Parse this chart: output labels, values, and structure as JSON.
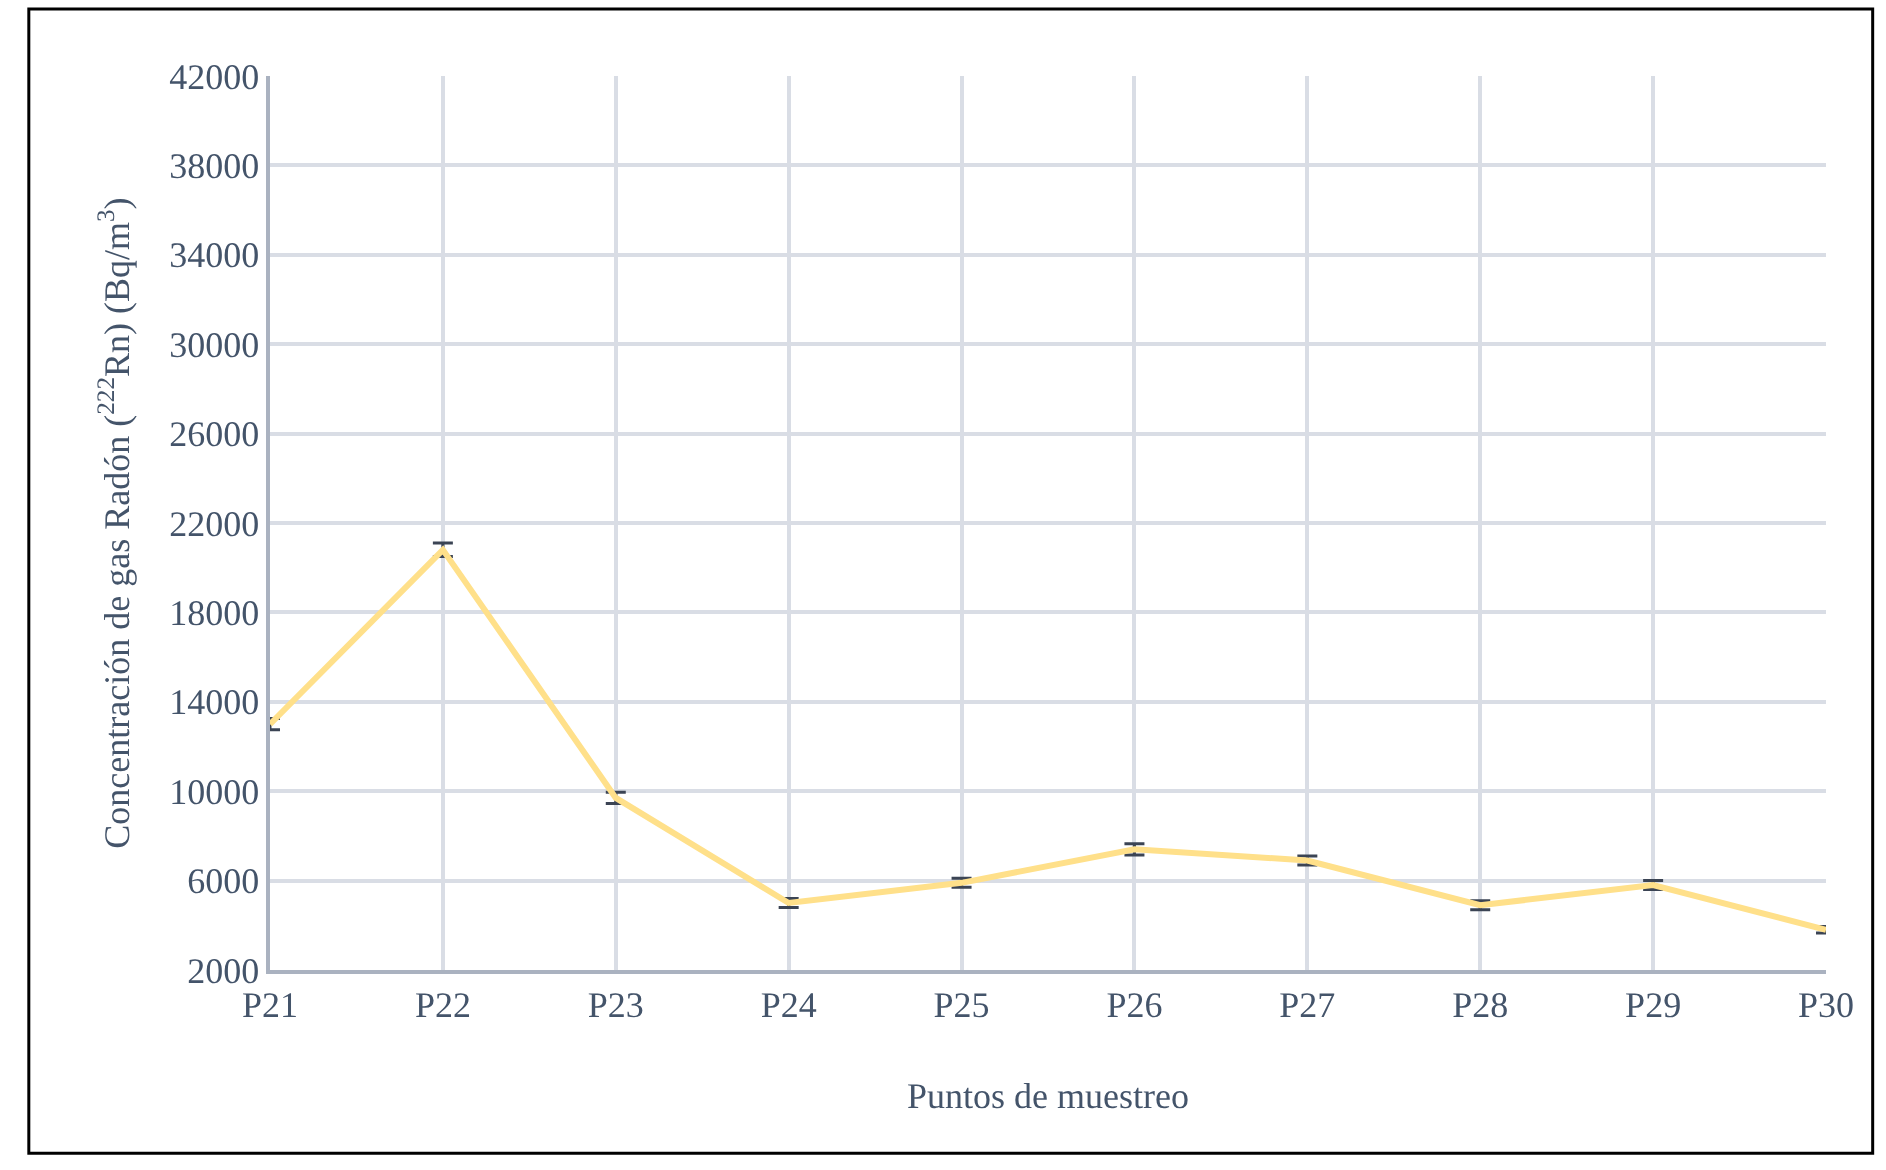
{
  "chart_data": {
    "type": "line",
    "xlabel": "Puntos de muestreo",
    "ylabel": "Concentración de gas Radón ($^{222}$Rn) (Bq/m$^{3}$)",
    "categories": [
      "P21",
      "P22",
      "P23",
      "P24",
      "P25",
      "P26",
      "P27",
      "P28",
      "P29",
      "P30"
    ],
    "series": [
      {
        "color": "#ffe08a",
        "values": [
          13000,
          20800,
          9700,
          5000,
          5900,
          7400,
          6900,
          4900,
          5800,
          3800
        ],
        "errors": [
          250,
          300,
          250,
          200,
          200,
          250,
          200,
          200,
          200,
          150
        ]
      }
    ],
    "ylim": [
      2000,
      42000
    ],
    "yticks": [
      2000,
      6000,
      10000,
      14000,
      18000,
      22000,
      26000,
      30000,
      34000,
      38000,
      42000
    ],
    "grid": true,
    "legend": false,
    "marker": "none",
    "line_style": "solid"
  }
}
